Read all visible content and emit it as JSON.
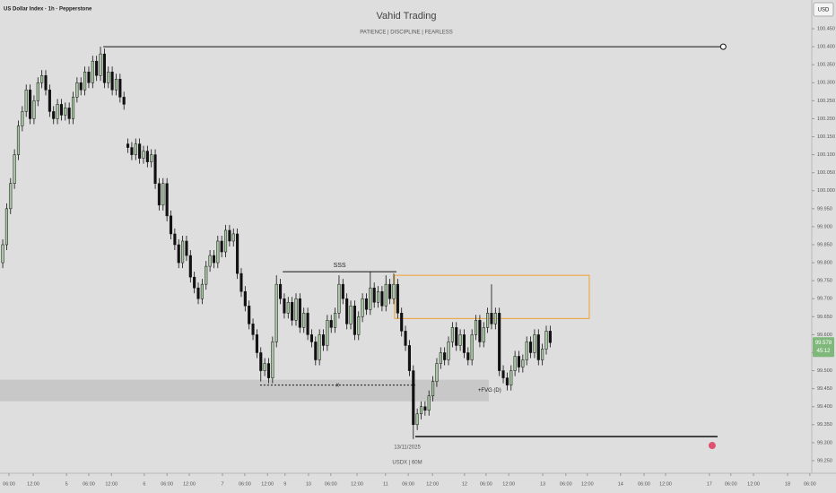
{
  "header": {
    "symbol": "US Dollar Index · 1h · Pepperstone",
    "title": "Vahid Trading",
    "subtitle": "PATIENCE  |  DISCIPLINE  |  FEARLESS",
    "currency": "USD",
    "date": "13/11/2025",
    "footer": "USDX | 60M",
    "last_price": {
      "value": 99.578,
      "label": "99.578"
    },
    "countdown": "45:12"
  },
  "chart_data": {
    "type": "candlestick",
    "up_color": "#a9c9a4",
    "down_color": "#111111",
    "xlim": [
      -0.7,
      206.9
    ],
    "ylim": [
      99.22,
      100.48
    ],
    "yticks": [
      {
        "value": 100.45,
        "label": "100.450"
      },
      {
        "value": 100.4,
        "label": "100.400"
      },
      {
        "value": 100.35,
        "label": "100.350"
      },
      {
        "value": 100.3,
        "label": "100.300"
      },
      {
        "value": 100.25,
        "label": "100.250"
      },
      {
        "value": 100.2,
        "label": "100.200"
      },
      {
        "value": 100.15,
        "label": "100.150"
      },
      {
        "value": 100.1,
        "label": "100.100"
      },
      {
        "value": 100.05,
        "label": "100.050"
      },
      {
        "value": 100,
        "label": "100.000"
      },
      {
        "value": 99.95,
        "label": "99.950"
      },
      {
        "value": 99.9,
        "label": "99.900"
      },
      {
        "value": 99.85,
        "label": "99.850"
      },
      {
        "value": 99.8,
        "label": "99.800"
      },
      {
        "value": 99.75,
        "label": "99.750"
      },
      {
        "value": 99.7,
        "label": "99.700"
      },
      {
        "value": 99.65,
        "label": "99.650"
      },
      {
        "value": 99.6,
        "label": "99.600"
      },
      {
        "value": 99.55,
        "label": "99.550"
      },
      {
        "value": 99.5,
        "label": "99.500"
      },
      {
        "value": 99.45,
        "label": "99.450"
      },
      {
        "value": 99.4,
        "label": "99.400"
      },
      {
        "value": 99.35,
        "label": "99.350"
      },
      {
        "value": 99.3,
        "label": "99.300"
      },
      {
        "value": 99.25,
        "label": "99.250"
      }
    ],
    "xticks": [
      {
        "value": 1.6,
        "label": "06:00"
      },
      {
        "value": 7.8,
        "label": "12:00"
      },
      {
        "value": 16.3,
        "label": "5"
      },
      {
        "value": 22,
        "label": "06:00"
      },
      {
        "value": 27.8,
        "label": "12:00"
      },
      {
        "value": 36.2,
        "label": "6"
      },
      {
        "value": 42,
        "label": "06:00"
      },
      {
        "value": 47.7,
        "label": "12:00"
      },
      {
        "value": 56.2,
        "label": "7"
      },
      {
        "value": 61.9,
        "label": "06:00"
      },
      {
        "value": 67.7,
        "label": "12:00"
      },
      {
        "value": 72.2,
        "label": "9"
      },
      {
        "value": 78.2,
        "label": "10"
      },
      {
        "value": 83.9,
        "label": "06:00"
      },
      {
        "value": 90.6,
        "label": "12:00"
      },
      {
        "value": 97.9,
        "label": "11"
      },
      {
        "value": 103.7,
        "label": "06:00"
      },
      {
        "value": 109.9,
        "label": "12:00"
      },
      {
        "value": 118.1,
        "label": "12"
      },
      {
        "value": 123.6,
        "label": "06:00"
      },
      {
        "value": 129.4,
        "label": "12:00"
      },
      {
        "value": 138.1,
        "label": "13"
      },
      {
        "value": 144,
        "label": "06:00"
      },
      {
        "value": 149.5,
        "label": "12:00"
      },
      {
        "value": 158,
        "label": "14"
      },
      {
        "value": 164,
        "label": "06:00"
      },
      {
        "value": 169.5,
        "label": "12:00"
      },
      {
        "value": 180.7,
        "label": "17"
      },
      {
        "value": 186.2,
        "label": "06:00"
      },
      {
        "value": 192,
        "label": "12:00"
      },
      {
        "value": 200.7,
        "label": "18"
      },
      {
        "value": 206.4,
        "label": "06:00"
      }
    ],
    "ohlc": [
      [
        99.8,
        99.865,
        99.785,
        99.85
      ],
      [
        99.85,
        99.965,
        99.835,
        99.95
      ],
      [
        99.95,
        100.035,
        99.935,
        100.02
      ],
      [
        100.02,
        100.115,
        100.005,
        100.1
      ],
      [
        100.1,
        100.195,
        100.085,
        100.18
      ],
      [
        100.18,
        100.235,
        100.165,
        100.22
      ],
      [
        100.22,
        100.295,
        100.205,
        100.28
      ],
      [
        100.28,
        100.295,
        100.185,
        100.2
      ],
      [
        100.2,
        100.265,
        100.185,
        100.25
      ],
      [
        100.25,
        100.315,
        100.235,
        100.3
      ],
      [
        100.3,
        100.335,
        100.285,
        100.32
      ],
      [
        100.32,
        100.335,
        100.265,
        100.28
      ],
      [
        100.28,
        100.295,
        100.205,
        100.22
      ],
      [
        100.22,
        100.235,
        100.185,
        100.2
      ],
      [
        100.2,
        100.255,
        100.185,
        100.24
      ],
      [
        100.24,
        100.255,
        100.195,
        100.21
      ],
      [
        100.21,
        100.245,
        100.195,
        100.23
      ],
      [
        100.23,
        100.245,
        100.185,
        100.2
      ],
      [
        100.2,
        100.275,
        100.185,
        100.26
      ],
      [
        100.26,
        100.315,
        100.245,
        100.3
      ],
      [
        100.3,
        100.315,
        100.265,
        100.28
      ],
      [
        100.28,
        100.345,
        100.265,
        100.33
      ],
      [
        100.33,
        100.345,
        100.285,
        100.3
      ],
      [
        100.3,
        100.375,
        100.285,
        100.36
      ],
      [
        100.36,
        100.375,
        100.305,
        100.32
      ],
      [
        100.32,
        100.4,
        100.305,
        100.38
      ],
      [
        100.38,
        100.395,
        100.285,
        100.3
      ],
      [
        100.3,
        100.345,
        100.285,
        100.33
      ],
      [
        100.33,
        100.345,
        100.265,
        100.28
      ],
      [
        100.28,
        100.325,
        100.265,
        100.31
      ],
      [
        100.31,
        100.325,
        100.245,
        100.26
      ],
      [
        100.26,
        100.275,
        100.225,
        100.24
      ],
      [
        100.13,
        100.145,
        100.105,
        100.12
      ],
      [
        100.12,
        100.135,
        100.085,
        100.1
      ],
      [
        100.1,
        100.145,
        100.085,
        100.13
      ],
      [
        100.13,
        100.145,
        100.075,
        100.09
      ],
      [
        100.09,
        100.125,
        100.075,
        100.11
      ],
      [
        100.11,
        100.125,
        100.065,
        100.08
      ],
      [
        100.08,
        100.115,
        100.065,
        100.1
      ],
      [
        100.1,
        100.115,
        100.005,
        100.02
      ],
      [
        100.02,
        100.035,
        99.945,
        99.96
      ],
      [
        99.96,
        100.035,
        99.945,
        100.02
      ],
      [
        100.02,
        100.035,
        99.915,
        99.93
      ],
      [
        99.93,
        99.945,
        99.865,
        99.88
      ],
      [
        99.88,
        99.895,
        99.835,
        99.85
      ],
      [
        99.85,
        99.865,
        99.785,
        99.8
      ],
      [
        99.8,
        99.875,
        99.785,
        99.86
      ],
      [
        99.86,
        99.875,
        99.805,
        99.82
      ],
      [
        99.82,
        99.835,
        99.745,
        99.76
      ],
      [
        99.76,
        99.775,
        99.715,
        99.73
      ],
      [
        99.73,
        99.745,
        99.685,
        99.7
      ],
      [
        99.7,
        99.755,
        99.685,
        99.74
      ],
      [
        99.74,
        99.805,
        99.725,
        99.79
      ],
      [
        99.79,
        99.835,
        99.775,
        99.82
      ],
      [
        99.82,
        99.835,
        99.785,
        99.8
      ],
      [
        99.8,
        99.875,
        99.785,
        99.86
      ],
      [
        99.86,
        99.875,
        99.815,
        99.83
      ],
      [
        99.83,
        99.905,
        99.815,
        99.89
      ],
      [
        99.89,
        99.905,
        99.845,
        99.86
      ],
      [
        99.86,
        99.895,
        99.845,
        99.88
      ],
      [
        99.88,
        99.895,
        99.755,
        99.77
      ],
      [
        99.77,
        99.785,
        99.705,
        99.72
      ],
      [
        99.72,
        99.735,
        99.665,
        99.68
      ],
      [
        99.68,
        99.695,
        99.615,
        99.63
      ],
      [
        99.63,
        99.645,
        99.585,
        99.6
      ],
      [
        99.6,
        99.615,
        99.535,
        99.55
      ],
      [
        99.55,
        99.565,
        99.47,
        99.5
      ],
      [
        99.5,
        99.535,
        99.485,
        99.52
      ],
      [
        99.52,
        99.535,
        99.465,
        99.48
      ],
      [
        99.48,
        99.595,
        99.465,
        99.58
      ],
      [
        99.58,
        99.765,
        99.565,
        99.74
      ],
      [
        99.74,
        99.755,
        99.685,
        99.7
      ],
      [
        99.7,
        99.715,
        99.645,
        99.66
      ],
      [
        99.66,
        99.705,
        99.645,
        99.69
      ],
      [
        99.69,
        99.705,
        99.625,
        99.64
      ],
      [
        99.64,
        99.715,
        99.625,
        99.7
      ],
      [
        99.7,
        99.715,
        99.605,
        99.62
      ],
      [
        99.62,
        99.675,
        99.605,
        99.66
      ],
      [
        99.66,
        99.675,
        99.585,
        99.6
      ],
      [
        99.6,
        99.615,
        99.565,
        99.58
      ],
      [
        99.58,
        99.595,
        99.515,
        99.53
      ],
      [
        99.53,
        99.615,
        99.515,
        99.6
      ],
      [
        99.6,
        99.615,
        99.555,
        99.57
      ],
      [
        99.57,
        99.655,
        99.555,
        99.64
      ],
      [
        99.64,
        99.655,
        99.605,
        99.62
      ],
      [
        99.62,
        99.675,
        99.605,
        99.66
      ],
      [
        99.66,
        99.765,
        99.645,
        99.74
      ],
      [
        99.74,
        99.755,
        99.685,
        99.7
      ],
      [
        99.7,
        99.715,
        99.615,
        99.63
      ],
      [
        99.63,
        99.695,
        99.615,
        99.68
      ],
      [
        99.68,
        99.695,
        99.585,
        99.6
      ],
      [
        99.6,
        99.665,
        99.585,
        99.65
      ],
      [
        99.65,
        99.715,
        99.635,
        99.7
      ],
      [
        99.7,
        99.715,
        99.655,
        99.67
      ],
      [
        99.67,
        99.775,
        99.655,
        99.73
      ],
      [
        99.73,
        99.745,
        99.675,
        99.69
      ],
      [
        99.69,
        99.735,
        99.675,
        99.72
      ],
      [
        99.72,
        99.735,
        99.665,
        99.68
      ],
      [
        99.68,
        99.765,
        99.665,
        99.74
      ],
      [
        99.74,
        99.755,
        99.685,
        99.7
      ],
      [
        99.7,
        99.77,
        99.685,
        99.74
      ],
      [
        99.74,
        99.755,
        99.645,
        99.66
      ],
      [
        99.66,
        99.675,
        99.595,
        99.61
      ],
      [
        99.61,
        99.625,
        99.555,
        99.57
      ],
      [
        99.57,
        99.585,
        99.485,
        99.5
      ],
      [
        99.5,
        99.515,
        99.31,
        99.35
      ],
      [
        99.35,
        99.395,
        99.335,
        99.38
      ],
      [
        99.38,
        99.415,
        99.365,
        99.4
      ],
      [
        99.4,
        99.415,
        99.375,
        99.39
      ],
      [
        99.39,
        99.445,
        99.375,
        99.43
      ],
      [
        99.43,
        99.485,
        99.415,
        99.47
      ],
      [
        99.47,
        99.535,
        99.455,
        99.52
      ],
      [
        99.52,
        99.565,
        99.505,
        99.55
      ],
      [
        99.55,
        99.565,
        99.515,
        99.53
      ],
      [
        99.53,
        99.595,
        99.515,
        99.58
      ],
      [
        99.58,
        99.635,
        99.565,
        99.62
      ],
      [
        99.62,
        99.635,
        99.555,
        99.57
      ],
      [
        99.57,
        99.615,
        99.555,
        99.6
      ],
      [
        99.6,
        99.615,
        99.535,
        99.55
      ],
      [
        99.55,
        99.565,
        99.515,
        99.53
      ],
      [
        99.53,
        99.615,
        99.515,
        99.6
      ],
      [
        99.6,
        99.655,
        99.585,
        99.64
      ],
      [
        99.64,
        99.655,
        99.565,
        99.58
      ],
      [
        99.58,
        99.635,
        99.565,
        99.62
      ],
      [
        99.62,
        99.675,
        99.605,
        99.66
      ],
      [
        99.66,
        99.74,
        99.615,
        99.63
      ],
      [
        99.63,
        99.675,
        99.615,
        99.66
      ],
      [
        99.66,
        99.675,
        99.485,
        99.5
      ],
      [
        99.5,
        99.515,
        99.465,
        99.48
      ],
      [
        99.48,
        99.495,
        99.445,
        99.46
      ],
      [
        99.46,
        99.515,
        99.445,
        99.5
      ],
      [
        99.5,
        99.555,
        99.485,
        99.54
      ],
      [
        99.54,
        99.555,
        99.495,
        99.51
      ],
      [
        99.51,
        99.545,
        99.495,
        99.53
      ],
      [
        99.53,
        99.595,
        99.515,
        99.58
      ],
      [
        99.58,
        99.595,
        99.535,
        99.55
      ],
      [
        99.55,
        99.615,
        99.535,
        99.6
      ],
      [
        99.6,
        99.615,
        99.515,
        99.53
      ],
      [
        99.53,
        99.575,
        99.515,
        99.56
      ],
      [
        99.56,
        99.625,
        99.545,
        99.61
      ],
      [
        99.61,
        99.625,
        99.565,
        99.578
      ]
    ],
    "annotations": {
      "high_line": {
        "price": 100.4,
        "x": [
          25.7,
          183.8
        ]
      },
      "sss": {
        "label": "SSS",
        "price": 99.775,
        "x": [
          71.6,
          100.7
        ]
      },
      "sweep": {
        "label": "x",
        "price": 99.46,
        "x": [
          65.8,
          105.5
        ]
      },
      "zone": {
        "top": 99.765,
        "bottom": 99.645,
        "x": [
          100.2,
          150
        ],
        "color": "#f0a030"
      },
      "fvg": {
        "label": "+FVG (D)",
        "top": 99.475,
        "bottom": 99.415,
        "x": [
          -0.7,
          124.3
        ]
      },
      "low_line": {
        "price": 99.317,
        "x": [
          105.5,
          182.8
        ]
      }
    }
  }
}
